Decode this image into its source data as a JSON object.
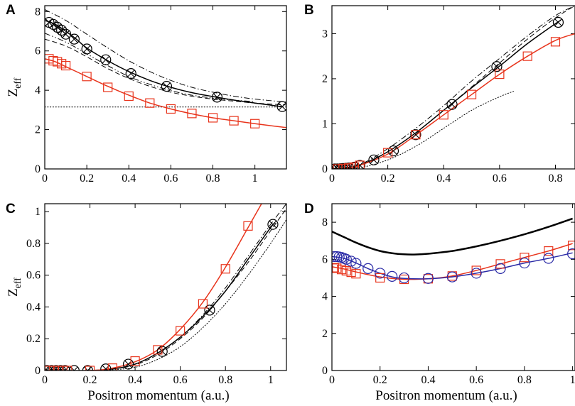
{
  "figure": {
    "panels": [
      "A",
      "B",
      "C",
      "D"
    ]
  },
  "colors": {
    "black": "#000000",
    "red": "#e8341c",
    "blue": "#2a2aa6"
  },
  "chart_data": [
    {
      "panel": "A",
      "type": "line",
      "xlabel": "",
      "ylabel": "Z",
      "ylabel_sub": "eff",
      "xlim": [
        0,
        1.15
      ],
      "ylim": [
        0,
        8.3
      ],
      "xticks": [
        0,
        0.2,
        0.4,
        0.6,
        0.8,
        1
      ],
      "xtick_labels": [
        "0",
        "0.2",
        "0.4",
        "0.6",
        "0.8",
        "1"
      ],
      "yticks": [
        0,
        2,
        4,
        6,
        8
      ],
      "ytick_labels": [
        "0",
        "2",
        "4",
        "6",
        "8"
      ],
      "series": [
        {
          "name": "dotted",
          "color": "black",
          "dash": "dotted",
          "width": 1,
          "x": [
            0,
            0.2,
            0.4,
            0.6,
            0.8,
            1.0,
            1.15
          ],
          "y": [
            3.15,
            3.15,
            3.15,
            3.15,
            3.15,
            3.15,
            3.15
          ]
        },
        {
          "name": "dash-dot",
          "color": "black",
          "dash": "dashdot",
          "width": 1,
          "x": [
            0,
            0.1,
            0.2,
            0.3,
            0.4,
            0.5,
            0.6,
            0.7,
            0.8,
            0.9,
            1.0,
            1.15
          ],
          "y": [
            8.1,
            7.55,
            6.85,
            6.15,
            5.5,
            4.95,
            4.5,
            4.15,
            3.9,
            3.7,
            3.55,
            3.4
          ]
        },
        {
          "name": "dashed",
          "color": "black",
          "dash": "dashed",
          "width": 1,
          "x": [
            0,
            0.1,
            0.2,
            0.3,
            0.4,
            0.5,
            0.6,
            0.7,
            0.8,
            0.9,
            1.0,
            1.15
          ],
          "y": [
            6.6,
            6.25,
            5.7,
            5.1,
            4.6,
            4.2,
            3.9,
            3.7,
            3.55,
            3.45,
            3.35,
            3.25
          ]
        },
        {
          "name": "dash-dot-dot",
          "color": "black",
          "dash": "dashdotdot",
          "width": 1,
          "x": [
            0,
            0.1,
            0.2,
            0.3,
            0.4,
            0.5,
            0.6,
            0.7,
            0.8,
            0.9,
            1.0
          ],
          "y": [
            6.9,
            6.45,
            5.85,
            5.25,
            4.7,
            4.3,
            3.98,
            3.75,
            3.6,
            3.5,
            3.42
          ]
        },
        {
          "name": "solid black",
          "color": "black",
          "dash": "solid",
          "width": 1.5,
          "x": [
            0,
            0.05,
            0.1,
            0.15,
            0.2,
            0.3,
            0.4,
            0.5,
            0.6,
            0.7,
            0.8,
            0.9,
            1.0,
            1.13
          ],
          "y": [
            7.55,
            7.35,
            7.0,
            6.6,
            6.15,
            5.5,
            4.95,
            4.5,
            4.15,
            3.88,
            3.68,
            3.5,
            3.35,
            3.17
          ]
        },
        {
          "name": "solid red",
          "color": "red",
          "dash": "solid",
          "width": 1.5,
          "x": [
            0,
            0.05,
            0.1,
            0.2,
            0.3,
            0.4,
            0.5,
            0.6,
            0.7,
            0.8,
            0.9,
            1.0,
            1.15
          ],
          "y": [
            5.6,
            5.45,
            5.2,
            4.7,
            4.2,
            3.75,
            3.35,
            3.05,
            2.8,
            2.6,
            2.45,
            2.3,
            2.1
          ]
        }
      ],
      "markers": [
        {
          "name": "crossed circles",
          "shape": "crossed-circle",
          "color": "black",
          "x": [
            0.02,
            0.04,
            0.06,
            0.08,
            0.1,
            0.14,
            0.2,
            0.29,
            0.41,
            0.58,
            0.82,
            1.13
          ],
          "y": [
            7.45,
            7.35,
            7.2,
            7.05,
            6.85,
            6.6,
            6.1,
            5.55,
            4.85,
            4.2,
            3.65,
            3.17
          ]
        },
        {
          "name": "red squares",
          "shape": "square",
          "color": "red",
          "x": [
            0.02,
            0.04,
            0.06,
            0.08,
            0.1,
            0.2,
            0.3,
            0.4,
            0.5,
            0.6,
            0.7,
            0.8,
            0.9,
            1.0
          ],
          "y": [
            5.6,
            5.5,
            5.45,
            5.35,
            5.25,
            4.7,
            4.15,
            3.7,
            3.35,
            3.05,
            2.82,
            2.6,
            2.45,
            2.3
          ]
        }
      ]
    },
    {
      "panel": "B",
      "type": "line",
      "xlabel": "",
      "ylabel": "",
      "xlim": [
        0,
        0.87
      ],
      "ylim": [
        0,
        3.62
      ],
      "xticks": [
        0,
        0.2,
        0.4,
        0.6,
        0.8
      ],
      "xtick_labels": [
        "0",
        "0.2",
        "0.4",
        "0.6",
        "0.8"
      ],
      "yticks": [
        0,
        1,
        2,
        3
      ],
      "ytick_labels": [
        "0",
        "1",
        "2",
        "3"
      ],
      "series": [
        {
          "name": "dotted",
          "color": "black",
          "dash": "dotted",
          "width": 1,
          "x": [
            0,
            0.1,
            0.2,
            0.3,
            0.4,
            0.5,
            0.6,
            0.65
          ],
          "y": [
            0,
            0.03,
            0.2,
            0.5,
            0.9,
            1.3,
            1.6,
            1.72
          ]
        },
        {
          "name": "dash-dot",
          "color": "black",
          "dash": "dashdot",
          "width": 1,
          "x": [
            0,
            0.1,
            0.2,
            0.3,
            0.4,
            0.5,
            0.6,
            0.7,
            0.8,
            0.87
          ],
          "y": [
            0,
            0.1,
            0.45,
            0.9,
            1.4,
            1.95,
            2.45,
            2.95,
            3.4,
            3.62
          ]
        },
        {
          "name": "dashed",
          "color": "black",
          "dash": "dashed",
          "width": 1,
          "x": [
            0,
            0.1,
            0.2,
            0.3,
            0.4,
            0.5,
            0.6,
            0.7,
            0.8,
            0.87
          ],
          "y": [
            0,
            0.09,
            0.38,
            0.8,
            1.3,
            1.82,
            2.35,
            2.88,
            3.35,
            3.62
          ]
        },
        {
          "name": "solid black",
          "color": "black",
          "dash": "solid",
          "width": 1.5,
          "x": [
            0,
            0.05,
            0.1,
            0.2,
            0.3,
            0.4,
            0.5,
            0.6,
            0.7,
            0.8,
            0.82
          ],
          "y": [
            0,
            0.02,
            0.08,
            0.38,
            0.8,
            1.3,
            1.8,
            2.28,
            2.78,
            3.22,
            3.3
          ]
        },
        {
          "name": "solid red",
          "color": "red",
          "dash": "solid",
          "width": 1.5,
          "x": [
            0,
            0.05,
            0.1,
            0.2,
            0.3,
            0.4,
            0.5,
            0.6,
            0.7,
            0.8,
            0.87
          ],
          "y": [
            0,
            0.02,
            0.08,
            0.33,
            0.75,
            1.2,
            1.65,
            2.1,
            2.5,
            2.85,
            3.0
          ]
        }
      ],
      "markers": [
        {
          "name": "crossed circles",
          "shape": "crossed-circle",
          "color": "black",
          "x": [
            0.01,
            0.02,
            0.03,
            0.04,
            0.05,
            0.06,
            0.08,
            0.1,
            0.15,
            0.22,
            0.3,
            0.43,
            0.59,
            0.81
          ],
          "y": [
            0,
            0,
            0.005,
            0.01,
            0.015,
            0.02,
            0.04,
            0.08,
            0.2,
            0.4,
            0.76,
            1.43,
            2.27,
            3.25
          ]
        },
        {
          "name": "red squares",
          "shape": "square",
          "color": "red",
          "x": [
            0.02,
            0.04,
            0.06,
            0.08,
            0.1,
            0.2,
            0.3,
            0.4,
            0.5,
            0.6,
            0.7,
            0.8
          ],
          "y": [
            0,
            0.01,
            0.02,
            0.04,
            0.08,
            0.36,
            0.76,
            1.2,
            1.65,
            2.1,
            2.5,
            2.82
          ]
        }
      ]
    },
    {
      "panel": "C",
      "type": "line",
      "xlabel": "Positron momentum (a.u.)",
      "ylabel": "Z",
      "ylabel_sub": "eff",
      "xlim": [
        0,
        1.07
      ],
      "ylim": [
        0,
        1.05
      ],
      "xticks": [
        0,
        0.2,
        0.4,
        0.6,
        0.8,
        1
      ],
      "xtick_labels": [
        "0",
        "0.2",
        "0.4",
        "0.6",
        "0.8",
        "1"
      ],
      "yticks": [
        0,
        0.2,
        0.4,
        0.6,
        0.8,
        1
      ],
      "ytick_labels": [
        "0",
        "0.2",
        "0.4",
        "0.6",
        "0.8",
        "1"
      ],
      "series": [
        {
          "name": "dotted",
          "color": "black",
          "dash": "dotted",
          "width": 1,
          "x": [
            0,
            0.2,
            0.3,
            0.4,
            0.5,
            0.6,
            0.7,
            0.8,
            0.9,
            1.0,
            1.07
          ],
          "y": [
            0,
            0,
            0.005,
            0.02,
            0.07,
            0.15,
            0.27,
            0.42,
            0.6,
            0.8,
            0.95
          ]
        },
        {
          "name": "dash-dot",
          "color": "black",
          "dash": "dashdot",
          "width": 1,
          "x": [
            0,
            0.2,
            0.3,
            0.4,
            0.5,
            0.6,
            0.7,
            0.8,
            0.9,
            1.0,
            1.07
          ],
          "y": [
            0,
            0,
            0.01,
            0.04,
            0.11,
            0.21,
            0.35,
            0.52,
            0.72,
            0.92,
            1.05
          ]
        },
        {
          "name": "dashed",
          "color": "black",
          "dash": "dashed",
          "width": 1,
          "x": [
            0,
            0.2,
            0.3,
            0.4,
            0.5,
            0.6,
            0.7,
            0.8,
            0.9,
            1.0,
            1.07
          ],
          "y": [
            0,
            0,
            0.01,
            0.035,
            0.1,
            0.2,
            0.33,
            0.5,
            0.68,
            0.88,
            1.02
          ]
        },
        {
          "name": "solid black",
          "color": "black",
          "dash": "solid",
          "width": 1.5,
          "x": [
            0,
            0.2,
            0.3,
            0.4,
            0.5,
            0.6,
            0.7,
            0.8,
            0.9,
            1.0,
            1.02
          ],
          "y": [
            0,
            0,
            0.01,
            0.04,
            0.11,
            0.21,
            0.34,
            0.5,
            0.7,
            0.9,
            0.93
          ]
        },
        {
          "name": "solid red",
          "color": "red",
          "dash": "solid",
          "width": 1.5,
          "x": [
            0,
            0.2,
            0.3,
            0.4,
            0.5,
            0.6,
            0.7,
            0.8,
            0.9,
            0.96
          ],
          "y": [
            0,
            0,
            0.015,
            0.055,
            0.13,
            0.26,
            0.43,
            0.65,
            0.9,
            1.05
          ]
        }
      ],
      "markers": [
        {
          "name": "crossed circles",
          "shape": "crossed-circle",
          "color": "black",
          "x": [
            0.01,
            0.03,
            0.05,
            0.07,
            0.09,
            0.13,
            0.19,
            0.27,
            0.37,
            0.52,
            0.73,
            1.01
          ],
          "y": [
            0,
            0,
            0,
            0,
            0,
            0,
            0,
            0.01,
            0.04,
            0.12,
            0.38,
            0.92
          ]
        },
        {
          "name": "red squares",
          "shape": "square",
          "color": "red",
          "x": [
            0.02,
            0.04,
            0.06,
            0.08,
            0.1,
            0.2,
            0.3,
            0.4,
            0.5,
            0.6,
            0.7,
            0.8,
            0.9
          ],
          "y": [
            0,
            0,
            0,
            0,
            0,
            0,
            0.015,
            0.06,
            0.13,
            0.25,
            0.42,
            0.64,
            0.91
          ]
        }
      ]
    },
    {
      "panel": "D",
      "type": "line",
      "xlabel": "Positron momentum (a.u.)",
      "ylabel": "",
      "xlim": [
        0,
        1.01
      ],
      "ylim": [
        0,
        9
      ],
      "xticks": [
        0,
        0.2,
        0.4,
        0.6,
        0.8,
        1
      ],
      "xtick_labels": [
        "0",
        "0.2",
        "0.4",
        "0.6",
        "0.8",
        "1"
      ],
      "yticks": [
        0,
        2,
        4,
        6,
        8
      ],
      "ytick_labels": [
        "0",
        "2",
        "4",
        "6",
        "8"
      ],
      "series": [
        {
          "name": "thick black",
          "color": "black",
          "dash": "solid",
          "width": 2.5,
          "x": [
            0,
            0.05,
            0.1,
            0.15,
            0.2,
            0.25,
            0.3,
            0.35,
            0.4,
            0.5,
            0.6,
            0.7,
            0.8,
            0.9,
            1.0
          ],
          "y": [
            7.5,
            7.2,
            6.9,
            6.65,
            6.45,
            6.33,
            6.27,
            6.26,
            6.3,
            6.45,
            6.7,
            7.0,
            7.35,
            7.75,
            8.2
          ]
        },
        {
          "name": "solid red",
          "color": "red",
          "dash": "solid",
          "width": 1.5,
          "x": [
            0,
            0.05,
            0.1,
            0.2,
            0.3,
            0.4,
            0.5,
            0.6,
            0.7,
            0.8,
            0.9,
            1.0
          ],
          "y": [
            5.6,
            5.48,
            5.32,
            5.05,
            4.92,
            4.95,
            5.1,
            5.4,
            5.75,
            6.1,
            6.45,
            6.85
          ]
        },
        {
          "name": "solid blue",
          "color": "blue",
          "dash": "solid",
          "width": 1.5,
          "x": [
            0,
            0.05,
            0.1,
            0.15,
            0.2,
            0.25,
            0.3,
            0.4,
            0.5,
            0.6,
            0.7,
            0.8,
            0.9,
            1.0
          ],
          "y": [
            6.15,
            6.05,
            5.8,
            5.5,
            5.25,
            5.05,
            4.97,
            4.95,
            5.05,
            5.25,
            5.5,
            5.8,
            6.05,
            6.35
          ]
        }
      ],
      "markers": [
        {
          "name": "red squares",
          "shape": "square",
          "color": "red",
          "x": [
            0.01,
            0.02,
            0.04,
            0.06,
            0.08,
            0.1,
            0.2,
            0.3,
            0.4,
            0.5,
            0.6,
            0.7,
            0.8,
            0.9,
            1.0
          ],
          "y": [
            5.55,
            5.52,
            5.45,
            5.38,
            5.3,
            5.22,
            5.0,
            4.92,
            4.95,
            5.1,
            5.4,
            5.75,
            6.1,
            6.45,
            6.75
          ]
        },
        {
          "name": "blue circles",
          "shape": "circle",
          "color": "blue",
          "x": [
            0.01,
            0.02,
            0.03,
            0.04,
            0.05,
            0.06,
            0.08,
            0.1,
            0.15,
            0.2,
            0.25,
            0.3,
            0.4,
            0.5,
            0.6,
            0.7,
            0.8,
            0.9,
            1.0
          ],
          "y": [
            6.15,
            6.15,
            6.13,
            6.1,
            6.05,
            6.0,
            5.9,
            5.78,
            5.5,
            5.25,
            5.08,
            5.0,
            4.97,
            5.05,
            5.25,
            5.5,
            5.8,
            6.05,
            6.3
          ]
        }
      ]
    }
  ]
}
